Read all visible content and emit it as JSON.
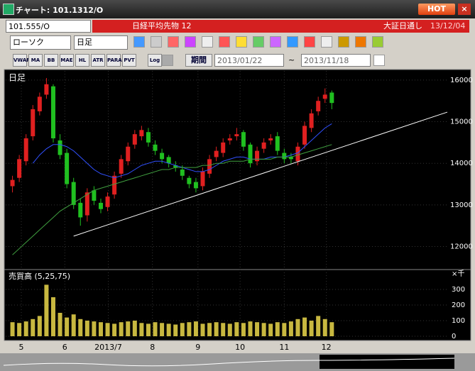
{
  "window": {
    "title": "チャート: 101.1312/O",
    "hot": "HOT"
  },
  "symbol_bar": {
    "code": "101.555/O",
    "name": "日経平均先物 12",
    "session": "大証日通し",
    "date": "13/12/04"
  },
  "toolbar": {
    "chart_type": "ローソク",
    "period": "日足"
  },
  "indicator_bar": {
    "buttons": [
      "VWAP",
      "MA",
      "BB",
      "MAE",
      "HL",
      "ATR",
      "PARA",
      "PVT",
      "Log"
    ],
    "range_button": "期間",
    "from": "2013/01/22",
    "tilde": "~",
    "to": "2013/11/18"
  },
  "chart_data": [
    {
      "type": "candlestick",
      "title": "日足",
      "up_color": "#e02020",
      "down_color": "#20c020",
      "xlim": [
        -1,
        64
      ],
      "xticks": [
        {
          "value": 1.3,
          "label": "5"
        },
        {
          "value": 7.7,
          "label": "6"
        },
        {
          "value": 14.1,
          "label": "2013/7"
        },
        {
          "value": 20.6,
          "label": "8"
        },
        {
          "value": 27.3,
          "label": "9"
        },
        {
          "value": 33.5,
          "label": "10"
        },
        {
          "value": 40,
          "label": "11"
        },
        {
          "value": 46.2,
          "label": "12"
        }
      ],
      "ylim": [
        11480,
        16220
      ],
      "yticks": [
        12000,
        13000,
        14000,
        15000,
        16000
      ],
      "grid": true,
      "open": [
        13450,
        13650,
        14050,
        14650,
        15250,
        15650,
        15850,
        14550,
        14250,
        13550,
        13050,
        12750,
        13350,
        13050,
        12950,
        13250,
        13750,
        14050,
        14450,
        14650,
        14750,
        14450,
        14250,
        14150,
        13950,
        13850,
        13650,
        13550,
        13450,
        13750,
        14150,
        14250,
        14550,
        14650,
        14750,
        14450,
        14050,
        14350,
        14550,
        14650,
        14250,
        14150,
        14050,
        14450,
        14850,
        15250,
        15550,
        15700
      ],
      "high": [
        13700,
        14200,
        14700,
        15400,
        15700,
        16050,
        15900,
        14700,
        14350,
        13650,
        13150,
        13400,
        13450,
        13150,
        13300,
        13800,
        14200,
        14500,
        14800,
        14900,
        14850,
        14550,
        14350,
        14200,
        14050,
        13950,
        13700,
        13650,
        13900,
        14200,
        14400,
        14600,
        14700,
        14850,
        14800,
        14500,
        14400,
        14600,
        14700,
        14750,
        14350,
        14250,
        14500,
        15000,
        15300,
        15600,
        15800,
        15750
      ],
      "low": [
        13300,
        13550,
        13950,
        14550,
        15150,
        15550,
        14500,
        14100,
        13400,
        12900,
        12500,
        12600,
        13000,
        12800,
        12850,
        13150,
        13650,
        13950,
        14350,
        14550,
        14400,
        14200,
        14000,
        13900,
        13800,
        13600,
        13400,
        13300,
        13350,
        13650,
        14050,
        14150,
        14450,
        14550,
        14300,
        13900,
        13950,
        14250,
        14450,
        14200,
        14000,
        14000,
        13950,
        14350,
        14750,
        15150,
        15450,
        15300
      ],
      "close": [
        13600,
        14100,
        14600,
        15300,
        15600,
        15900,
        14600,
        14200,
        13500,
        13000,
        12700,
        13300,
        13100,
        12900,
        13200,
        13700,
        14100,
        14400,
        14700,
        14800,
        14500,
        14300,
        14100,
        14000,
        13900,
        13700,
        13500,
        13400,
        13800,
        14100,
        14300,
        14500,
        14600,
        14700,
        14400,
        14000,
        14300,
        14500,
        14600,
        14300,
        14100,
        14100,
        14400,
        14900,
        15200,
        15500,
        15650,
        15450
      ],
      "series": [
        {
          "color": "#3050ff",
          "values": [
            null,
            null,
            null,
            14000,
            14200,
            14350,
            14450,
            14450,
            14400,
            14300,
            14150,
            14000,
            13850,
            13750,
            13700,
            13650,
            13700,
            13750,
            13850,
            13950,
            14000,
            14050,
            14050,
            14000,
            13950,
            13900,
            13850,
            13800,
            13800,
            13850,
            13950,
            14050,
            14100,
            14150,
            14150,
            14100,
            14100,
            14100,
            14150,
            14150,
            14150,
            14200,
            14250,
            14400,
            14550,
            14700,
            14850,
            14950
          ]
        },
        {
          "color": "#40a040",
          "values": [
            11800,
            11950,
            12100,
            12250,
            12400,
            12550,
            12700,
            12850,
            12950,
            13050,
            13150,
            13250,
            13350,
            13400,
            13450,
            13500,
            13550,
            13600,
            13650,
            13700,
            13750,
            13800,
            13850,
            13850,
            13900,
            13900,
            13900,
            13900,
            13950,
            13950,
            14000,
            14000,
            14050,
            14050,
            14050,
            14100,
            14100,
            14100,
            14100,
            14150,
            14150,
            14150,
            14200,
            14250,
            14300,
            14350,
            14400,
            14450
          ]
        }
      ],
      "trend_line": {
        "x": [
          9,
          64
        ],
        "y": [
          12250,
          15230
        ],
        "color": "#ffffff"
      }
    },
    {
      "type": "bar",
      "title": "売買高 (5,25,75)",
      "unit": "×千",
      "color": "#c8b840",
      "ylim": [
        0,
        400
      ],
      "yticks": [
        0,
        100,
        200,
        300
      ],
      "values": [
        90,
        85,
        95,
        110,
        130,
        330,
        250,
        150,
        120,
        140,
        110,
        100,
        95,
        90,
        85,
        80,
        90,
        95,
        100,
        85,
        80,
        90,
        85,
        80,
        75,
        85,
        90,
        95,
        80,
        85,
        90,
        85,
        80,
        90,
        85,
        95,
        90,
        85,
        80,
        90,
        85,
        95,
        110,
        120,
        100,
        130,
        110,
        90
      ]
    }
  ]
}
